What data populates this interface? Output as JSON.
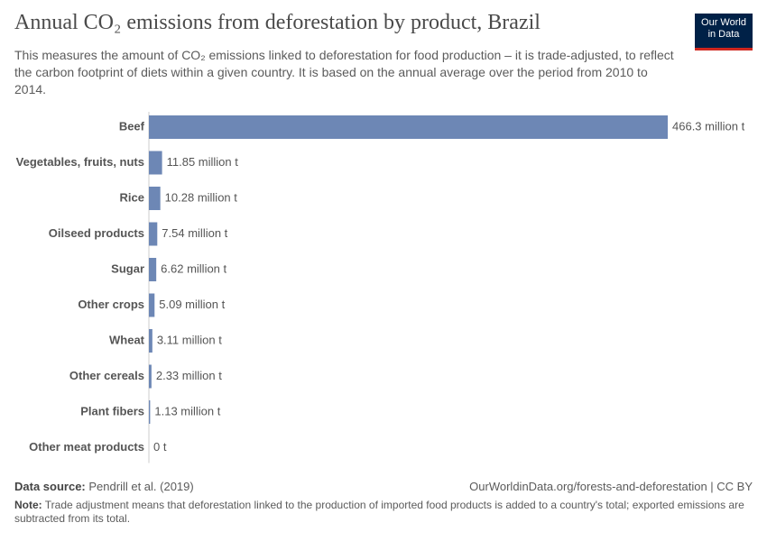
{
  "chart_data": {
    "type": "bar",
    "orientation": "horizontal",
    "title": "Annual CO₂ emissions from deforestation by product, Brazil",
    "subtitle": "This measures the amount of CO₂ emissions linked to deforestation for food production – it is trade-adjusted, to reflect the carbon footprint of diets within a given country. It is based on the annual average over the period from 2010 to 2014.",
    "categories": [
      "Beef",
      "Vegetables, fruits, nuts",
      "Rice",
      "Oilseed products",
      "Sugar",
      "Other crops",
      "Wheat",
      "Other cereals",
      "Plant fibers",
      "Other meat products"
    ],
    "values": [
      466.3,
      11.85,
      10.28,
      7.54,
      6.62,
      5.09,
      3.11,
      2.33,
      1.13,
      0
    ],
    "value_labels": [
      "466.3 million t",
      "11.85 million t",
      "10.28 million t",
      "7.54 million t",
      "6.62 million t",
      "5.09 million t",
      "3.11 million t",
      "2.33 million t",
      "1.13 million t",
      "0 t"
    ],
    "color": "#6d87b5",
    "logo": [
      "Our World",
      "in Data"
    ],
    "source_label": "Data source:",
    "source": "Pendrill et al. (2019)",
    "url": "OurWorldinData.org/forests-and-deforestation | CC BY",
    "note_label": "Note:",
    "note": "Trade adjustment means that deforestation linked to the production of imported food products is added to a country's total; exported emissions are subtracted from its total."
  }
}
